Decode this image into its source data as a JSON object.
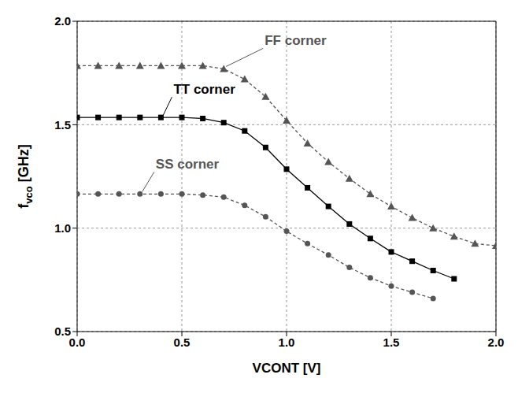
{
  "chart_data": {
    "type": "line",
    "x_label": "VCONT [V]",
    "y_label": "fvco [GHz]",
    "xlim": [
      0,
      2
    ],
    "xticks": [
      {
        "value": 0,
        "label": "0.0"
      },
      0.5,
      {
        "value": 1,
        "label": "1.0"
      },
      1.5,
      {
        "value": 2,
        "label": "2.0"
      }
    ],
    "ylim": [
      0.5,
      2
    ],
    "yticks": [
      0.5,
      {
        "value": 1,
        "label": "1.0"
      },
      1.5,
      {
        "value": 2,
        "label": "2.0"
      }
    ],
    "grid": true,
    "series": [
      {
        "name": "FF corner",
        "color": "#555555",
        "marker": "triangle",
        "line_style": "dashed",
        "x": [
          0,
          0.1,
          0.2,
          0.3,
          0.4,
          0.5,
          0.6,
          0.7,
          0.8,
          0.9,
          1.0,
          1.1,
          1.2,
          1.3,
          1.4,
          1.5,
          1.6,
          1.7,
          1.8,
          1.9,
          2.0
        ],
        "values": [
          1.785,
          1.785,
          1.785,
          1.785,
          1.785,
          1.785,
          1.785,
          1.77,
          1.72,
          1.635,
          1.52,
          1.41,
          1.32,
          1.24,
          1.165,
          1.105,
          1.05,
          1.0,
          0.96,
          0.925,
          0.915
        ]
      },
      {
        "name": "TT corner",
        "color": "#000000",
        "marker": "square",
        "line_style": "solid",
        "x": [
          0,
          0.1,
          0.2,
          0.3,
          0.4,
          0.5,
          0.6,
          0.7,
          0.8,
          0.9,
          1.0,
          1.1,
          1.2,
          1.3,
          1.4,
          1.5,
          1.6,
          1.7,
          1.8
        ],
        "values": [
          1.535,
          1.535,
          1.535,
          1.535,
          1.535,
          1.535,
          1.53,
          1.51,
          1.47,
          1.39,
          1.285,
          1.195,
          1.105,
          1.02,
          0.95,
          0.885,
          0.84,
          0.795,
          0.755
        ]
      },
      {
        "name": "SS corner",
        "color": "#555555",
        "marker": "circle",
        "line_style": "dashed",
        "x": [
          0,
          0.1,
          0.2,
          0.3,
          0.4,
          0.5,
          0.6,
          0.7,
          0.8,
          0.9,
          1.0,
          1.1,
          1.2,
          1.3,
          1.4,
          1.5,
          1.6,
          1.7
        ],
        "values": [
          1.165,
          1.165,
          1.165,
          1.165,
          1.165,
          1.165,
          1.16,
          1.15,
          1.11,
          1.055,
          0.985,
          0.925,
          0.87,
          0.81,
          0.76,
          0.72,
          0.69,
          0.66
        ]
      }
    ]
  }
}
